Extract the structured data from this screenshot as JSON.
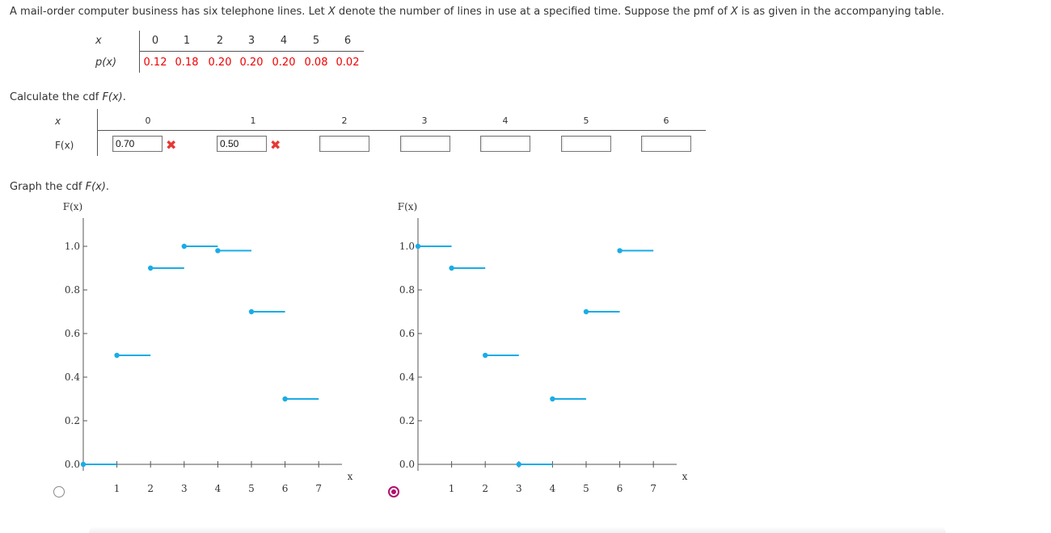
{
  "question": {
    "parts": [
      "A mail-order computer business has six telephone lines. Let ",
      "X",
      " denote the number of lines in use at a specified time. Suppose the pmf of ",
      "X",
      " is as given in the accompanying table."
    ]
  },
  "pmf_table": {
    "x_label": "x",
    "p_label": "p(x)",
    "x_values": [
      "0",
      "1",
      "2",
      "3",
      "4",
      "5",
      "6"
    ],
    "p_values": [
      "0.12",
      "0.18",
      "0.20",
      "0.20",
      "0.20",
      "0.08",
      "0.02"
    ]
  },
  "cdf_prompt": {
    "text": "Calculate the cdf ",
    "fx": "F(x)",
    "end": "."
  },
  "cdf_table": {
    "x_label": "x",
    "f_label": "F(x)",
    "x_values": [
      "0",
      "1",
      "2",
      "3",
      "4",
      "5",
      "6"
    ],
    "inputs": [
      {
        "value": "0.70",
        "status": "incorrect"
      },
      {
        "value": "0.50",
        "status": "incorrect"
      },
      {
        "value": "",
        "status": "none"
      },
      {
        "value": "",
        "status": "none"
      },
      {
        "value": "",
        "status": "none"
      },
      {
        "value": "",
        "status": "none"
      },
      {
        "value": "",
        "status": "none"
      }
    ],
    "wrong_icon": "✖"
  },
  "graph_prompt": {
    "text": "Graph the cdf ",
    "fx": "F(x)",
    "end": "."
  },
  "graph_options": [
    {
      "selected": false,
      "chart_data": {
        "type": "line",
        "ylabel": "F(x)",
        "xlabel": "x",
        "xlim": [
          0,
          7.5
        ],
        "ylim": [
          0,
          1.0
        ],
        "x_ticks": [
          "1",
          "2",
          "3",
          "4",
          "5",
          "6",
          "7"
        ],
        "y_ticks": [
          "0.0",
          "0.2",
          "0.4",
          "0.6",
          "0.8",
          "1.0"
        ],
        "steps": [
          {
            "x0": 0,
            "x1": 1,
            "y": 0.0
          },
          {
            "x0": 1,
            "x1": 2,
            "y": 0.5
          },
          {
            "x0": 2,
            "x1": 3,
            "y": 0.9
          },
          {
            "x0": 3,
            "x1": 4,
            "y": 1.0
          },
          {
            "x0": 4,
            "x1": 5,
            "y": 0.98
          },
          {
            "x0": 5,
            "x1": 6,
            "y": 0.7
          },
          {
            "x0": 6,
            "x1": 7,
            "y": 0.3
          }
        ],
        "color": "#1aace6"
      }
    },
    {
      "selected": true,
      "chart_data": {
        "type": "line",
        "ylabel": "F(x)",
        "xlabel": "x",
        "xlim": [
          0,
          7.5
        ],
        "ylim": [
          0,
          1.0
        ],
        "x_ticks": [
          "1",
          "2",
          "3",
          "4",
          "5",
          "6",
          "7"
        ],
        "y_ticks": [
          "0.0",
          "0.2",
          "0.4",
          "0.6",
          "0.8",
          "1.0"
        ],
        "steps": [
          {
            "x0": 0,
            "x1": 1,
            "y": 1.0
          },
          {
            "x0": 1,
            "x1": 2,
            "y": 0.9
          },
          {
            "x0": 2,
            "x1": 3,
            "y": 0.5
          },
          {
            "x0": 3,
            "x1": 4,
            "y": 0.0
          },
          {
            "x0": 4,
            "x1": 5,
            "y": 0.3
          },
          {
            "x0": 5,
            "x1": 6,
            "y": 0.7
          },
          {
            "x0": 6,
            "x1": 7,
            "y": 0.98
          }
        ],
        "color": "#1aace6"
      }
    }
  ]
}
